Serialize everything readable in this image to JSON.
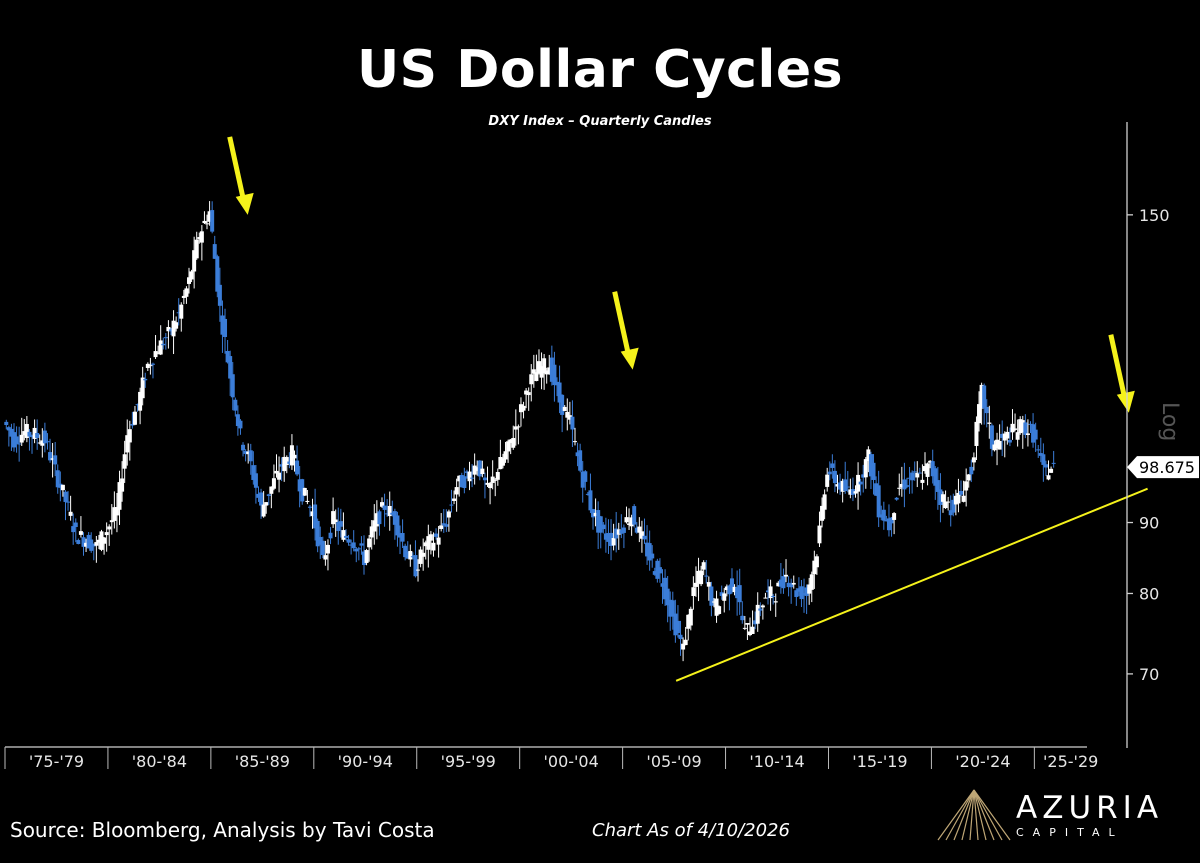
{
  "header": {
    "title": "US Dollar Cycles",
    "subtitle": "DXY Index – Quarterly Candles"
  },
  "footer": {
    "source": "Source: Bloomberg, Analysis by Tavi Costa",
    "as_of": "Chart As of 4/10/2026"
  },
  "logo": {
    "name": "AZURIA",
    "sub": "CAPITAL"
  },
  "colors": {
    "background": "#000000",
    "up_candle": "#ffffff",
    "down_candle": "#3b7dd8",
    "annotation": "#f5f21b",
    "price_label_bg": "#ffffff",
    "price_label_text": "#000000"
  },
  "chart_data": {
    "type": "candlestick",
    "scale": "log",
    "ylim": [
      62,
      175
    ],
    "yticks": [
      70,
      80,
      90,
      150
    ],
    "ylabel": "Log",
    "x_range": [
      1975.0,
      2029.5
    ],
    "x_ticks": [
      {
        "label": "'75-'79",
        "start": 1975,
        "end": 1980
      },
      {
        "label": "'80-'84",
        "start": 1980,
        "end": 1985
      },
      {
        "label": "'85-'89",
        "start": 1985,
        "end": 1990
      },
      {
        "label": "'90-'94",
        "start": 1990,
        "end": 1995
      },
      {
        "label": "'95-'99",
        "start": 1995,
        "end": 2000
      },
      {
        "label": "'00-'04",
        "start": 2000,
        "end": 2005
      },
      {
        "label": "'05-'09",
        "start": 2005,
        "end": 2010
      },
      {
        "label": "'10-'14",
        "start": 2010,
        "end": 2015
      },
      {
        "label": "'15-'19",
        "start": 2015,
        "end": 2020
      },
      {
        "label": "'20-'24",
        "start": 2020,
        "end": 2025
      },
      {
        "label": "'25-'29",
        "start": 2025,
        "end": 2030
      }
    ],
    "last_price": 98.675,
    "series": [
      {
        "name": "DXY Index",
        "values": [
          [
            1975.0,
            106.4
          ],
          [
            1975.5,
            103.3
          ],
          [
            1976.0,
            104.6
          ],
          [
            1976.5,
            104.1
          ],
          [
            1977.0,
            103.2
          ],
          [
            1977.5,
            98.0
          ],
          [
            1978.0,
            93.3
          ],
          [
            1978.5,
            88.3
          ],
          [
            1979.0,
            87.4
          ],
          [
            1979.5,
            86.5
          ],
          [
            1980.0,
            88.9
          ],
          [
            1980.5,
            91.8
          ],
          [
            1981.0,
            104.2
          ],
          [
            1981.5,
            109.4
          ],
          [
            1982.0,
            116.9
          ],
          [
            1982.5,
            120.3
          ],
          [
            1983.0,
            122.9
          ],
          [
            1983.5,
            127.1
          ],
          [
            1984.0,
            134.3
          ],
          [
            1984.5,
            145.2
          ],
          [
            1985.0,
            150.8
          ],
          [
            1985.5,
            128.2
          ],
          [
            1986.0,
            114.8
          ],
          [
            1986.5,
            103.7
          ],
          [
            1987.0,
            99.1
          ],
          [
            1987.5,
            92.0
          ],
          [
            1988.0,
            95.4
          ],
          [
            1988.5,
            99.0
          ],
          [
            1989.0,
            100.9
          ],
          [
            1989.5,
            94.7
          ],
          [
            1990.0,
            91.5
          ],
          [
            1990.5,
            84.2
          ],
          [
            1991.0,
            90.5
          ],
          [
            1991.5,
            88.1
          ],
          [
            1992.0,
            87.3
          ],
          [
            1992.5,
            84.8
          ],
          [
            1993.0,
            89.7
          ],
          [
            1993.5,
            92.5
          ],
          [
            1994.0,
            90.6
          ],
          [
            1994.5,
            86.0
          ],
          [
            1995.0,
            83.4
          ],
          [
            1995.5,
            86.6
          ],
          [
            1996.0,
            87.7
          ],
          [
            1996.5,
            90.2
          ],
          [
            1997.0,
            95.7
          ],
          [
            1997.5,
            97.0
          ],
          [
            1998.0,
            99.4
          ],
          [
            1998.5,
            94.7
          ],
          [
            1999.0,
            98.3
          ],
          [
            1999.5,
            101.7
          ],
          [
            2000.0,
            106.9
          ],
          [
            2000.5,
            113.3
          ],
          [
            2001.0,
            116.2
          ],
          [
            2001.5,
            117.0
          ],
          [
            2002.0,
            110.1
          ],
          [
            2002.5,
            106.3
          ],
          [
            2003.0,
            98.2
          ],
          [
            2003.5,
            92.6
          ],
          [
            2004.0,
            88.6
          ],
          [
            2004.5,
            87.6
          ],
          [
            2005.0,
            89.3
          ],
          [
            2005.5,
            91.2
          ],
          [
            2006.0,
            87.5
          ],
          [
            2006.5,
            84.1
          ],
          [
            2007.0,
            81.7
          ],
          [
            2007.5,
            76.7
          ],
          [
            2008.0,
            72.9
          ],
          [
            2008.5,
            80.5
          ],
          [
            2009.0,
            83.5
          ],
          [
            2009.5,
            77.9
          ],
          [
            2010.0,
            80.2
          ],
          [
            2010.5,
            81.6
          ],
          [
            2011.0,
            74.9
          ],
          [
            2011.5,
            76.8
          ],
          [
            2012.0,
            79.6
          ],
          [
            2012.5,
            80.1
          ],
          [
            2013.0,
            82.5
          ],
          [
            2013.5,
            80.3
          ],
          [
            2014.0,
            80.0
          ],
          [
            2014.5,
            85.9
          ],
          [
            2015.0,
            98.4
          ],
          [
            2015.5,
            96.1
          ],
          [
            2016.0,
            94.6
          ],
          [
            2016.5,
            96.2
          ],
          [
            2017.0,
            100.4
          ],
          [
            2017.5,
            92.2
          ],
          [
            2018.0,
            89.6
          ],
          [
            2018.5,
            95.4
          ],
          [
            2019.0,
            96.7
          ],
          [
            2019.5,
            97.1
          ],
          [
            2020.0,
            98.9
          ],
          [
            2020.5,
            93.9
          ],
          [
            2021.0,
            92.3
          ],
          [
            2021.5,
            94.3
          ],
          [
            2022.0,
            98.3
          ],
          [
            2022.5,
            111.8
          ],
          [
            2023.0,
            102.5
          ],
          [
            2023.5,
            103.1
          ],
          [
            2024.0,
            104.5
          ],
          [
            2024.5,
            105.8
          ],
          [
            2025.0,
            104.2
          ],
          [
            2025.5,
            97.8
          ],
          [
            2026.0,
            98.7
          ]
        ]
      }
    ],
    "annotations": {
      "down_arrows_at": [
        [
          1986.4,
          150
        ],
        [
          2005.1,
          116
        ],
        [
          2029.2,
          108
        ]
      ],
      "trendline": {
        "from": [
          2007.6,
          69.2
        ],
        "to": [
          2030.5,
          95.2
        ]
      }
    }
  }
}
